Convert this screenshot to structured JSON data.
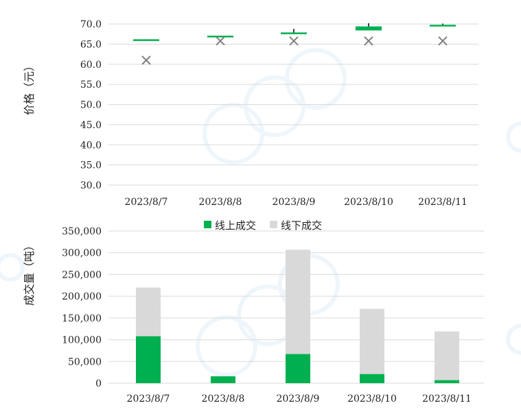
{
  "colors": {
    "online": "#00b050",
    "offline": "#d9d9d9",
    "grid": "#d9d9d9",
    "marker": "#7f7f7f",
    "wick": "#000000"
  },
  "chart_data": [
    {
      "type": "candlestick",
      "ylabel": "价格（元）",
      "ylim": [
        30,
        70
      ],
      "yticks": [
        "30.0",
        "35.0",
        "40.0",
        "45.0",
        "50.0",
        "55.0",
        "60.0",
        "65.0",
        "70.0"
      ],
      "categories": [
        "2023/8/7",
        "2023/8/8",
        "2023/8/9",
        "2023/8/10",
        "2023/8/11"
      ],
      "open": [
        66.0,
        66.9,
        67.5,
        68.4,
        69.6
      ],
      "close": [
        66.2,
        67.1,
        67.9,
        69.4,
        69.8
      ],
      "high": [
        66.2,
        67.1,
        68.8,
        70.2,
        70.1
      ],
      "low": [
        66.0,
        66.9,
        67.5,
        68.4,
        69.6
      ],
      "marker": [
        61.0,
        65.8,
        65.8,
        65.8,
        65.8
      ]
    },
    {
      "type": "bar",
      "stacked": true,
      "ylabel": "成交量（吨）",
      "ylim": [
        0,
        350000
      ],
      "yticks": [
        "0",
        "50,000",
        "100,000",
        "150,000",
        "200,000",
        "250,000",
        "300,000",
        "350,000"
      ],
      "categories": [
        "2023/8/7",
        "2023/8/8",
        "2023/8/9",
        "2023/8/10",
        "2023/8/11"
      ],
      "legend": [
        "线上成交",
        "线下成交"
      ],
      "series": [
        {
          "name": "线上成交",
          "values": [
            108000,
            16000,
            67000,
            21000,
            7000
          ]
        },
        {
          "name": "线下成交",
          "values": [
            112000,
            0,
            240000,
            150000,
            112000
          ]
        }
      ]
    }
  ]
}
